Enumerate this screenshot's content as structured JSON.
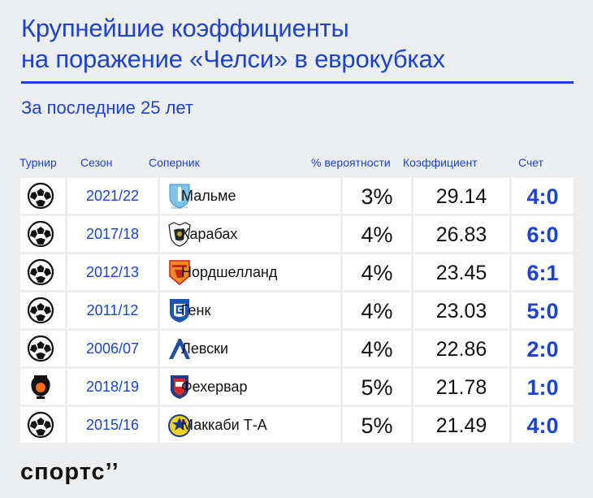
{
  "title": {
    "line1": "Крупнейшие коэффициенты",
    "line2": "на поражение «Челси» в еврокубках"
  },
  "subtitle": "За последние 25 лет",
  "headers": {
    "tournament": "Турнир",
    "season": "Сезон",
    "opponent": "Соперник",
    "probability": "% вероятности",
    "coefficient": "Коэффициент",
    "score": "Счет"
  },
  "rows": [
    {
      "tournament_icon": "champions-league-icon",
      "season": "2021/22",
      "crest_icon": "malmo-crest-icon",
      "opponent": "Мальме",
      "probability": "3%",
      "coefficient": "29.14",
      "score": "4:0"
    },
    {
      "tournament_icon": "champions-league-icon",
      "season": "2017/18",
      "crest_icon": "qarabag-crest-icon",
      "opponent": "Карабах",
      "probability": "4%",
      "coefficient": "26.83",
      "score": "6:0"
    },
    {
      "tournament_icon": "champions-league-icon",
      "season": "2012/13",
      "crest_icon": "nordsjaelland-crest-icon",
      "opponent": "Нордшелланд",
      "probability": "4%",
      "coefficient": "23.45",
      "score": "6:1"
    },
    {
      "tournament_icon": "champions-league-icon",
      "season": "2011/12",
      "crest_icon": "genk-crest-icon",
      "opponent": "Генк",
      "probability": "4%",
      "coefficient": "23.03",
      "score": "5:0"
    },
    {
      "tournament_icon": "champions-league-icon",
      "season": "2006/07",
      "crest_icon": "levski-crest-icon",
      "opponent": "Левски",
      "probability": "4%",
      "coefficient": "22.86",
      "score": "2:0"
    },
    {
      "tournament_icon": "europa-league-icon",
      "season": "2018/19",
      "crest_icon": "fehervar-crest-icon",
      "opponent": "Фехервар",
      "probability": "5%",
      "coefficient": "21.78",
      "score": "1:0"
    },
    {
      "tournament_icon": "champions-league-icon",
      "season": "2015/16",
      "crest_icon": "maccabi-crest-icon",
      "opponent": "Маккаби Т-А",
      "probability": "5%",
      "coefficient": "21.49",
      "score": "4:0"
    }
  ],
  "brand": "спортс’’",
  "colors": {
    "accent": "#1a43d6",
    "background": "#edeef0",
    "cell": "#ffffff"
  }
}
